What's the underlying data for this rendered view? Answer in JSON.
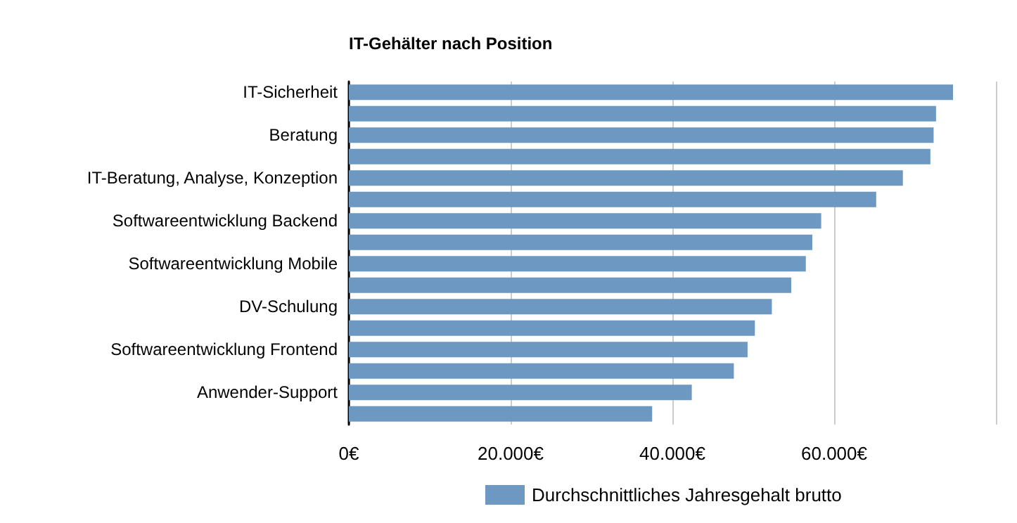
{
  "chart_data": {
    "type": "bar",
    "orientation": "horizontal",
    "title": "IT-Gehälter nach Position",
    "categories": [
      "IT-Sicherheit",
      null,
      "Beratung",
      null,
      "IT-Beratung, Analyse, Konzeption",
      null,
      "Softwareentwicklung Backend",
      null,
      "Softwareentwicklung Mobile",
      null,
      "DV-Schulung",
      null,
      "Softwareentwicklung Frontend",
      null,
      "Anwender-Support",
      null
    ],
    "series": [
      {
        "name": "Durchschnittliches Jahresgehalt brutto",
        "color": "#6d98c1",
        "values": [
          74700,
          72600,
          72300,
          71900,
          68500,
          65200,
          58400,
          57300,
          56500,
          54700,
          52300,
          50200,
          49300,
          47600,
          42400,
          37500
        ]
      }
    ],
    "xlim": [
      0,
      80000
    ],
    "xticks": [
      {
        "value": 0,
        "label": "0€"
      },
      {
        "value": 20000,
        "label": "20.000€"
      },
      {
        "value": 40000,
        "label": "40.000€"
      },
      {
        "value": 60000,
        "label": "60.000€"
      },
      {
        "value": 80000,
        "label": null
      }
    ],
    "grid": "x",
    "legend": "bottom"
  }
}
